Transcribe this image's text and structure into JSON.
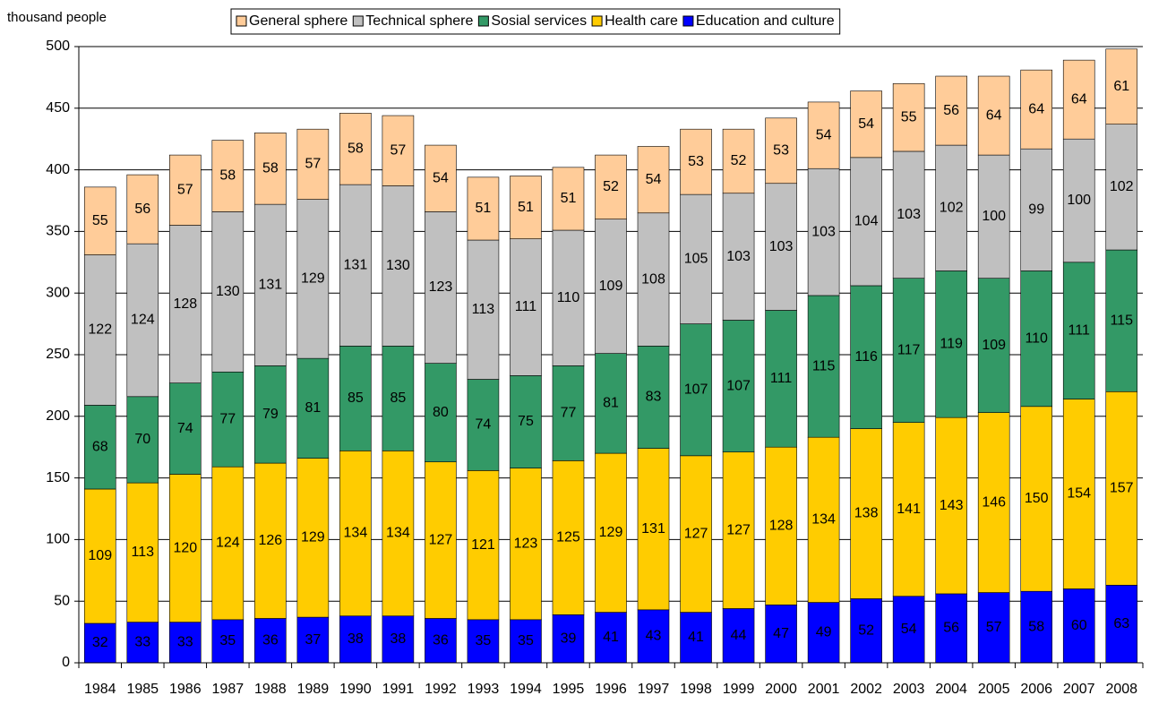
{
  "chart_data": {
    "type": "stacked_bar",
    "ylabel": "thousand people",
    "categories": [
      "1984",
      "1985",
      "1986",
      "1987",
      "1988",
      "1989",
      "1990",
      "1991",
      "1992",
      "1993",
      "1994",
      "1995",
      "1996",
      "1997",
      "1998",
      "1999",
      "2000",
      "2001",
      "2002",
      "2003",
      "2004",
      "2005",
      "2006",
      "2007",
      "2008"
    ],
    "series": [
      {
        "name": "Education and culture",
        "color": "#0000FF",
        "values": [
          32,
          33,
          33,
          35,
          36,
          37,
          38,
          38,
          36,
          35,
          35,
          39,
          41,
          43,
          41,
          44,
          47,
          49,
          52,
          54,
          56,
          57,
          58,
          60,
          63
        ]
      },
      {
        "name": "Health care",
        "color": "#FFCC00",
        "values": [
          109,
          113,
          120,
          124,
          126,
          129,
          134,
          134,
          127,
          121,
          123,
          125,
          129,
          131,
          127,
          127,
          128,
          134,
          138,
          141,
          143,
          146,
          150,
          154,
          157
        ]
      },
      {
        "name": "Sosial services",
        "color": "#339966",
        "values": [
          68,
          70,
          74,
          77,
          79,
          81,
          85,
          85,
          80,
          74,
          75,
          77,
          81,
          83,
          107,
          107,
          111,
          115,
          116,
          117,
          119,
          109,
          110,
          111,
          115
        ]
      },
      {
        "name": "Technical sphere",
        "color": "#C0C0C0",
        "values": [
          122,
          124,
          128,
          130,
          131,
          129,
          131,
          130,
          123,
          113,
          111,
          110,
          109,
          108,
          105,
          103,
          103,
          103,
          104,
          103,
          102,
          100,
          99,
          100,
          102
        ]
      },
      {
        "name": "General sphere",
        "color": "#FFCC99",
        "values": [
          55,
          56,
          57,
          58,
          58,
          57,
          58,
          57,
          54,
          51,
          51,
          51,
          52,
          54,
          53,
          52,
          53,
          54,
          54,
          55,
          56,
          64,
          64,
          64,
          61
        ]
      }
    ],
    "ylim": [
      0,
      500
    ],
    "yticks": [
      0,
      50,
      100,
      150,
      200,
      250,
      300,
      350,
      400,
      450,
      500
    ],
    "grid": true,
    "legend": "top"
  }
}
